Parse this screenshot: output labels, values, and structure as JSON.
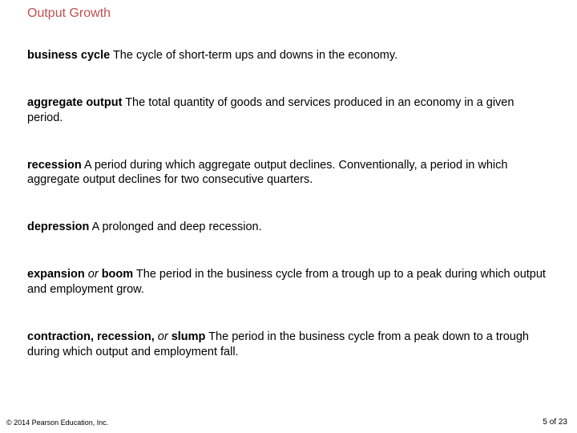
{
  "title": "Output Growth",
  "definitions": [
    {
      "term": "business cycle",
      "rich": "  The cycle of short-term ups and downs in the economy."
    },
    {
      "term": "aggregate output",
      "rich": "  The total quantity of goods and services produced in an economy in a given period."
    },
    {
      "term": "recession",
      "rich": "  A period during which aggregate output declines. Conventionally, a period in which aggregate output declines for two consecutive quarters."
    },
    {
      "term": "depression",
      "rich": "  A prolonged and deep recession."
    },
    {
      "term": "expansion",
      "italic": "or",
      "term2": "boom",
      "rich": "  The period in the business cycle from a trough up to a peak during which output and employment grow."
    },
    {
      "term": "contraction, recession,",
      "italic": "or",
      "term2": "slump",
      "rich": "  The period in the business cycle from a peak down to a trough during which output and employment fall."
    }
  ],
  "copyright": "© 2014 Pearson Education, Inc.",
  "page_current": 5,
  "page_total": 23,
  "colors": {
    "title": "#c05050",
    "text": "#000000",
    "background": "#ffffff"
  },
  "typography": {
    "title_fontsize": 16,
    "body_fontsize": 14.5,
    "footer_fontsize": 9
  }
}
